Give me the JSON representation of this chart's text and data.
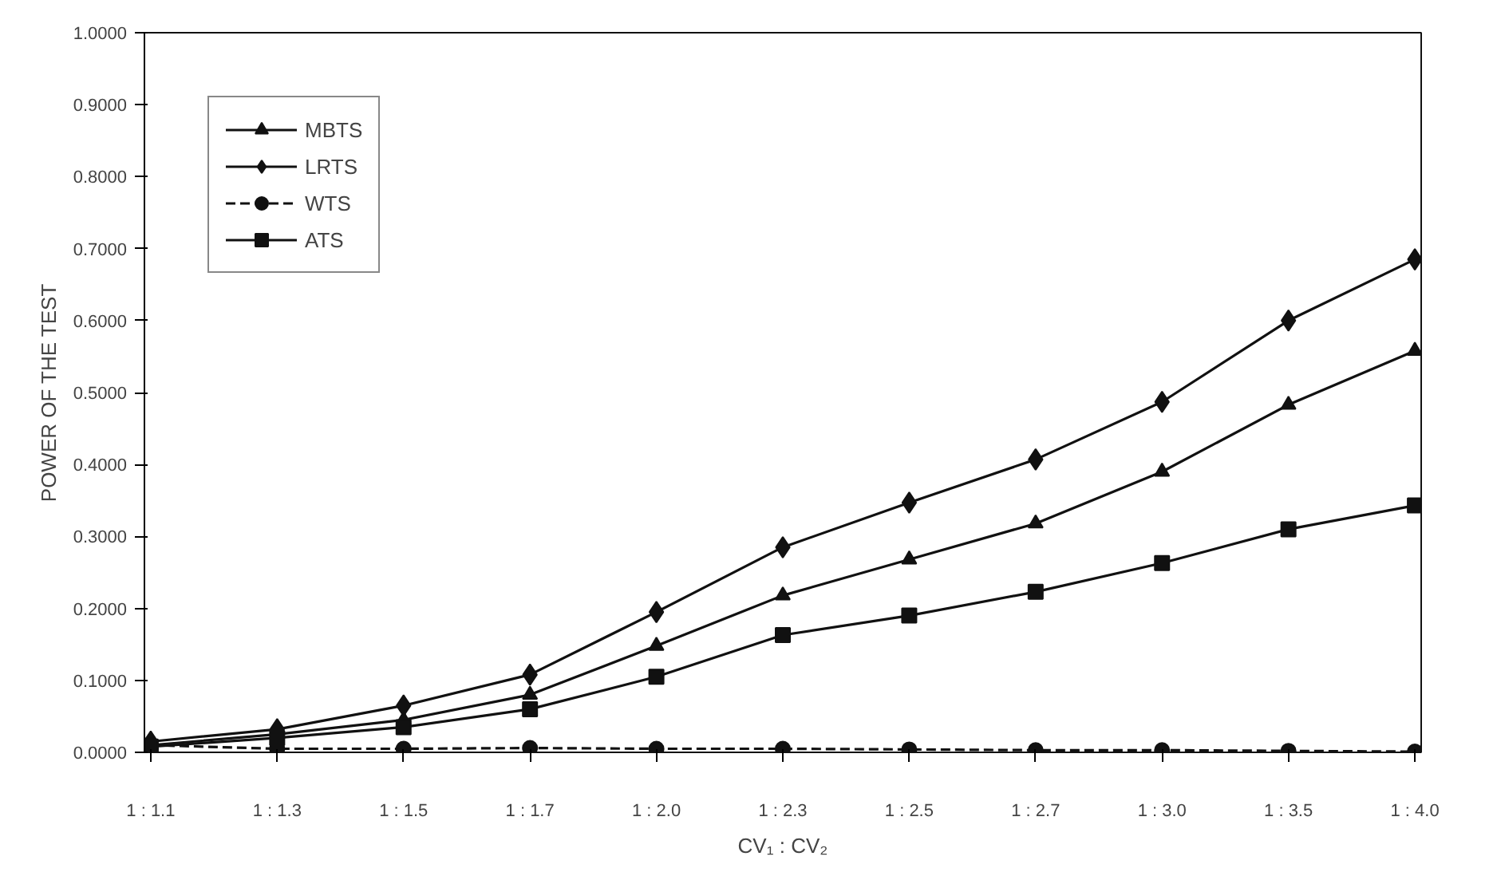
{
  "chart_data": {
    "type": "line",
    "xlabel": "CV₁ : CV₂",
    "ylabel": "POWER OF THE TEST",
    "categories": [
      "1 : 1.1",
      "1 : 1.3",
      "1 : 1.5",
      "1 : 1.7",
      "1 : 2.0",
      "1 : 2.3",
      "1 : 2.5",
      "1 : 2.7",
      "1 : 3.0",
      "1 : 3.5",
      "1 : 4.0"
    ],
    "series": [
      {
        "name": "MBTS",
        "color": "#111111",
        "marker": "triangle",
        "line_style": "solid",
        "values": [
          0.01,
          0.025,
          0.045,
          0.08,
          0.148,
          0.218,
          0.268,
          0.318,
          0.39,
          0.483,
          0.558
        ]
      },
      {
        "name": "LRTS",
        "color": "#111111",
        "marker": "diamond",
        "line_style": "solid",
        "values": [
          0.015,
          0.032,
          0.065,
          0.108,
          0.195,
          0.285,
          0.347,
          0.407,
          0.487,
          0.6,
          0.685
        ]
      },
      {
        "name": "WTS",
        "color": "#111111",
        "marker": "circle",
        "line_style": "dashed",
        "values": [
          0.01,
          0.005,
          0.005,
          0.006,
          0.005,
          0.005,
          0.004,
          0.003,
          0.003,
          0.002,
          0.001
        ]
      },
      {
        "name": "ATS",
        "color": "#111111",
        "marker": "square",
        "line_style": "solid",
        "values": [
          0.008,
          0.02,
          0.035,
          0.06,
          0.105,
          0.163,
          0.19,
          0.223,
          0.263,
          0.31,
          0.343
        ]
      }
    ],
    "ylim": [
      0,
      1
    ],
    "yticks": [
      {
        "value": 0,
        "label": "0.0000"
      },
      {
        "value": 0.1,
        "label": "0.1000"
      },
      {
        "value": 0.2,
        "label": "0.2000"
      },
      {
        "value": 0.3,
        "label": "0.3000"
      },
      {
        "value": 0.4,
        "label": "0.4000"
      },
      {
        "value": 0.5,
        "label": "0.5000"
      },
      {
        "value": 0.6,
        "label": "0.6000"
      },
      {
        "value": 0.7,
        "label": "0.7000"
      },
      {
        "value": 0.8,
        "label": "0.8000"
      },
      {
        "value": 0.9,
        "label": "0.9000"
      },
      {
        "value": 1,
        "label": "1.0000"
      }
    ],
    "grid": false,
    "legend": "top left"
  }
}
